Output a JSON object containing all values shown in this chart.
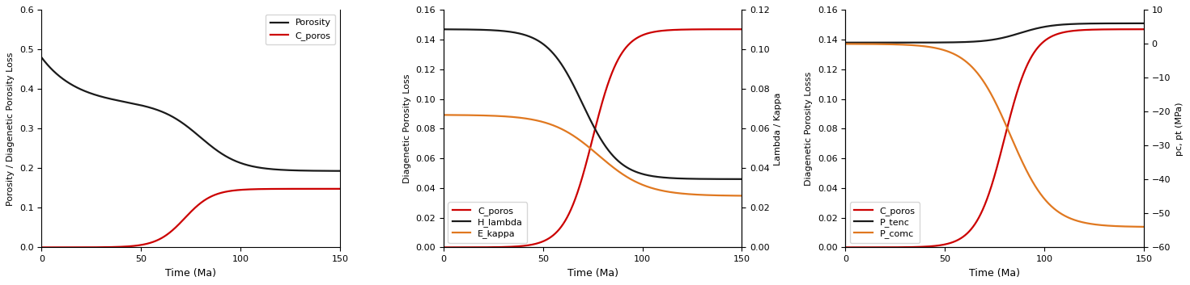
{
  "fig_width": 14.7,
  "fig_height": 3.53,
  "dpi": 100,
  "panel1": {
    "ylabel_left": "Porosity / Diagenetic Porosity Loss",
    "xlabel": "Time (Ma)",
    "ylim_left": [
      0,
      0.6
    ],
    "yticks_left": [
      0.0,
      0.1,
      0.2,
      0.3,
      0.4,
      0.5,
      0.6
    ],
    "xlim": [
      0,
      150
    ],
    "xticks": [
      0,
      50,
      100,
      150
    ]
  },
  "panel2": {
    "ylabel_left": "Diagenetic Porosity Loss",
    "ylabel_right": "Lambda / Kappa",
    "xlabel": "Time (Ma)",
    "ylim_left": [
      0,
      0.16
    ],
    "ylim_right": [
      0,
      0.12
    ],
    "yticks_left": [
      0.0,
      0.02,
      0.04,
      0.06,
      0.08,
      0.1,
      0.12,
      0.14,
      0.16
    ],
    "yticks_right": [
      0.0,
      0.02,
      0.04,
      0.06,
      0.08,
      0.1,
      0.12
    ],
    "xlim": [
      0,
      150
    ],
    "xticks": [
      0,
      50,
      100,
      150
    ]
  },
  "panel3": {
    "ylabel_left": "Diagenetic Porosity Losss",
    "ylabel_right": "pc, pt (MPa)",
    "xlabel": "Time (Ma)",
    "ylim_left": [
      0,
      0.16
    ],
    "ylim_right": [
      -60,
      10
    ],
    "yticks_left": [
      0.0,
      0.02,
      0.04,
      0.06,
      0.08,
      0.1,
      0.12,
      0.14,
      0.16
    ],
    "yticks_right": [
      -60,
      -50,
      -40,
      -30,
      -20,
      -10,
      0,
      10
    ],
    "xlim": [
      0,
      150
    ],
    "xticks": [
      0,
      50,
      100,
      150
    ]
  },
  "colors": {
    "black": "#1a1a1a",
    "red": "#cc0000",
    "orange": "#e07820"
  },
  "lw": 1.6
}
